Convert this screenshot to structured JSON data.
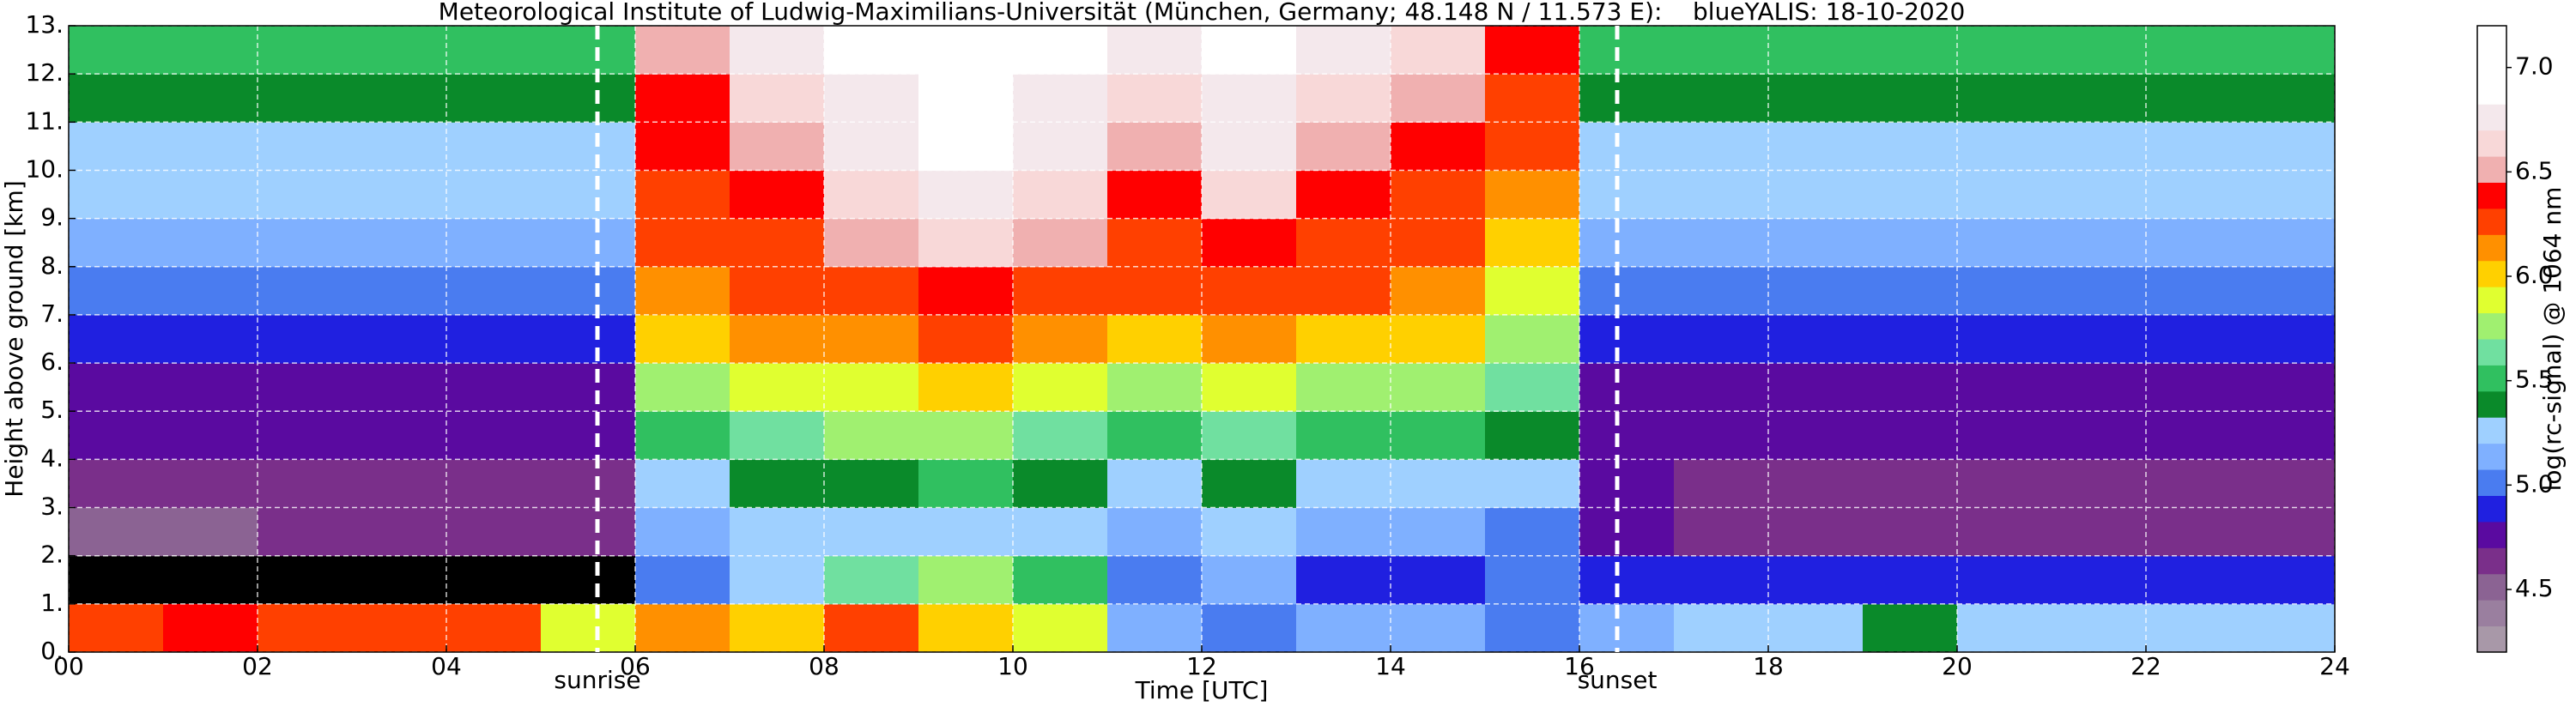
{
  "chart_data": {
    "type": "heatmap",
    "title": "Meteorological Institute of Ludwig-Maximilians-Universität (München, Germany; 48.148 N / 11.573 E):    blueYALIS: 18-10-2020",
    "x_label": "Time [UTC]",
    "y_label": "Height above ground [km]",
    "x_bins": [
      0,
      1,
      2,
      3,
      4,
      5,
      6,
      7,
      8,
      9,
      10,
      11,
      12,
      13,
      14,
      15,
      16,
      17,
      18,
      19,
      20,
      21,
      22,
      23,
      24
    ],
    "y_bins": [
      0,
      1,
      2,
      3,
      4,
      5,
      6,
      7,
      8,
      9,
      10,
      11,
      12,
      13
    ],
    "z": [
      [
        6.3,
        6.4,
        6.3,
        6.3,
        6.3,
        5.9,
        6.1,
        6.0,
        6.2,
        6.0,
        5.9,
        5.1,
        5.0,
        5.1,
        5.1,
        5.0,
        5.1,
        5.2,
        5.3,
        5.4,
        5.3,
        5.3,
        5.2,
        5.2
      ],
      [
        null,
        null,
        null,
        null,
        null,
        null,
        5.0,
        5.3,
        5.6,
        5.7,
        5.5,
        5.0,
        5.1,
        4.9,
        4.9,
        5.0,
        4.9,
        4.9,
        4.9,
        4.9,
        4.9,
        4.9,
        4.9,
        4.9
      ],
      [
        4.5,
        4.5,
        4.6,
        4.6,
        4.6,
        4.6,
        5.1,
        5.2,
        5.2,
        5.3,
        5.2,
        5.1,
        5.2,
        5.1,
        5.1,
        5.0,
        4.7,
        4.6,
        4.6,
        4.6,
        4.6,
        4.6,
        4.6,
        4.6
      ],
      [
        4.6,
        4.6,
        4.6,
        4.6,
        4.6,
        4.6,
        5.3,
        5.4,
        5.4,
        5.5,
        5.4,
        5.3,
        5.4,
        5.3,
        5.3,
        5.2,
        4.7,
        4.6,
        4.6,
        4.6,
        4.6,
        4.6,
        4.6,
        4.6
      ],
      [
        4.7,
        4.7,
        4.7,
        4.7,
        4.7,
        4.7,
        5.5,
        5.6,
        5.7,
        5.7,
        5.6,
        5.5,
        5.6,
        5.5,
        5.5,
        5.4,
        4.8,
        4.7,
        4.7,
        4.7,
        4.7,
        4.7,
        4.7,
        4.7
      ],
      [
        4.8,
        4.8,
        4.8,
        4.8,
        4.8,
        4.8,
        5.8,
        5.9,
        5.9,
        6.0,
        5.9,
        5.8,
        5.9,
        5.8,
        5.8,
        5.6,
        4.8,
        4.8,
        4.8,
        4.8,
        4.8,
        4.8,
        4.8,
        4.8
      ],
      [
        4.9,
        4.9,
        4.9,
        4.9,
        4.9,
        4.9,
        6.0,
        6.1,
        6.1,
        6.2,
        6.1,
        6.0,
        6.1,
        6.0,
        6.0,
        5.8,
        4.9,
        4.9,
        4.9,
        4.9,
        4.9,
        4.9,
        4.9,
        4.9
      ],
      [
        5.0,
        5.0,
        5.0,
        5.0,
        5.0,
        5.0,
        6.1,
        6.2,
        6.3,
        6.4,
        6.3,
        6.2,
        6.3,
        6.2,
        6.1,
        5.9,
        5.0,
        5.0,
        5.0,
        5.0,
        5.0,
        5.0,
        5.0,
        5.0
      ],
      [
        5.1,
        5.1,
        5.1,
        5.1,
        5.1,
        5.1,
        6.2,
        6.3,
        6.5,
        6.6,
        6.5,
        6.3,
        6.4,
        6.3,
        6.2,
        6.0,
        5.1,
        5.1,
        5.1,
        5.1,
        5.1,
        5.1,
        5.1,
        5.1
      ],
      [
        5.2,
        5.2,
        5.2,
        5.2,
        5.2,
        5.2,
        6.3,
        6.4,
        6.6,
        6.8,
        6.6,
        6.4,
        6.6,
        6.4,
        6.3,
        6.1,
        5.2,
        5.2,
        5.2,
        5.2,
        5.2,
        5.2,
        5.2,
        5.2
      ],
      [
        5.3,
        5.3,
        5.3,
        5.3,
        5.3,
        5.3,
        6.4,
        6.5,
        6.7,
        6.9,
        6.7,
        6.5,
        6.7,
        6.5,
        6.4,
        6.2,
        5.3,
        5.3,
        5.3,
        5.3,
        5.3,
        5.3,
        5.3,
        5.3
      ],
      [
        5.4,
        5.4,
        5.4,
        5.4,
        5.4,
        5.4,
        6.4,
        6.6,
        6.8,
        7.0,
        6.8,
        6.6,
        6.8,
        6.6,
        6.5,
        6.3,
        5.4,
        5.4,
        5.4,
        5.4,
        5.4,
        5.4,
        5.4,
        5.4
      ],
      [
        5.5,
        5.5,
        5.5,
        5.5,
        5.5,
        5.5,
        6.5,
        6.7,
        6.9,
        7.1,
        6.9,
        6.7,
        6.9,
        6.7,
        6.6,
        6.4,
        5.5,
        5.5,
        5.5,
        5.5,
        5.5,
        5.5,
        5.5,
        5.5
      ]
    ],
    "xlim": [
      0,
      24
    ],
    "ylim": [
      0,
      13
    ],
    "xticks": [
      {
        "value": 0,
        "label": "00"
      },
      {
        "value": 2,
        "label": "02"
      },
      {
        "value": 4,
        "label": "04"
      },
      {
        "value": 6,
        "label": "06"
      },
      {
        "value": 8,
        "label": "08"
      },
      {
        "value": 10,
        "label": "10"
      },
      {
        "value": 12,
        "label": "12"
      },
      {
        "value": 14,
        "label": "14"
      },
      {
        "value": 16,
        "label": "16"
      },
      {
        "value": 18,
        "label": "18"
      },
      {
        "value": 20,
        "label": "20"
      },
      {
        "value": 22,
        "label": "22"
      },
      {
        "value": 24,
        "label": "24"
      }
    ],
    "yticks": [
      {
        "value": 0,
        "label": "0."
      },
      {
        "value": 1,
        "label": "1."
      },
      {
        "value": 2,
        "label": "2."
      },
      {
        "value": 3,
        "label": "3."
      },
      {
        "value": 4,
        "label": "4."
      },
      {
        "value": 5,
        "label": "5."
      },
      {
        "value": 6,
        "label": "6."
      },
      {
        "value": 7,
        "label": "7."
      },
      {
        "value": 8,
        "label": "8."
      },
      {
        "value": 9,
        "label": "9."
      },
      {
        "value": 10,
        "label": "10."
      },
      {
        "value": 11,
        "label": "11."
      },
      {
        "value": 12,
        "label": "12."
      },
      {
        "value": 13,
        "label": "13."
      }
    ],
    "grid": true,
    "annotations": [
      {
        "x": 5.6,
        "text": "sunrise"
      },
      {
        "x": 16.4,
        "text": "sunset"
      }
    ],
    "colorbar": {
      "label": "log(rc-signal) @ 1064 nm",
      "zlim": [
        4.2,
        7.2
      ],
      "ticks": [
        4.5,
        {
          "value": 5.0,
          "label": "5.0"
        },
        5.5,
        {
          "value": 6.0,
          "label": "6.0"
        },
        6.5,
        {
          "value": 7.0,
          "label": "7.0"
        }
      ],
      "colors": [
        "#a898a8",
        "#9a7f9f",
        "#8b6393",
        "#7a2f8a",
        "#5a0aa0",
        "#2020e0",
        "#4a7cf0",
        "#7fb0ff",
        "#9fd0ff",
        "#0a8a2a",
        "#30c060",
        "#70e0a0",
        "#a0f070",
        "#e0ff30",
        "#ffd000",
        "#ff9000",
        "#ff4000",
        "#ff0000",
        "#f0b0b0",
        "#f8d8d8",
        "#f4e8ec",
        "#ffffff",
        "#ffffff",
        "#ffffff"
      ]
    }
  }
}
